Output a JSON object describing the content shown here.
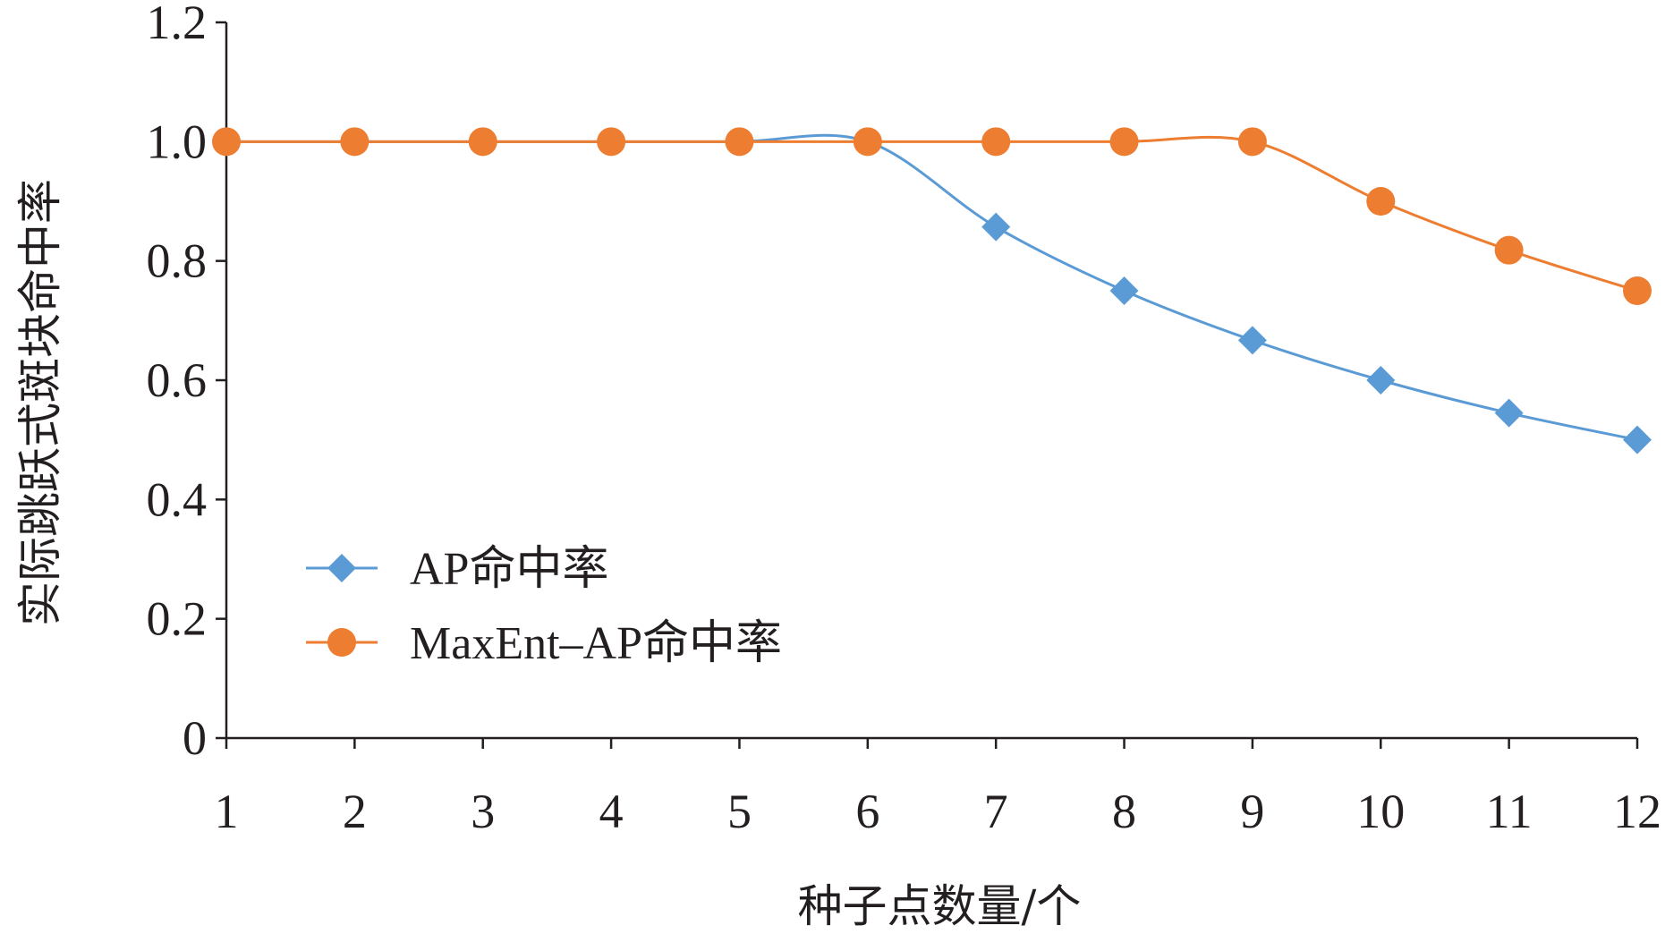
{
  "chart_data": {
    "type": "line",
    "xlabel": "种子点数量/个",
    "ylabel": "实际跳跃式斑块命中率",
    "x": [
      1,
      2,
      3,
      4,
      5,
      6,
      7,
      8,
      9,
      10,
      11,
      12
    ],
    "xticks": [
      "1",
      "2",
      "3",
      "4",
      "5",
      "6",
      "7",
      "8",
      "9",
      "10",
      "11",
      "12"
    ],
    "ylim": [
      0,
      1.2
    ],
    "yticks": [
      "0",
      "0.2",
      "0.4",
      "0.6",
      "0.8",
      "1.0",
      "1.2"
    ],
    "grid": false,
    "legend_position": "center-left",
    "series": [
      {
        "name": "AP命中率",
        "color": "#5b9bd5",
        "marker": "diamond",
        "values": [
          1.0,
          1.0,
          1.0,
          1.0,
          1.0,
          1.0,
          0.857,
          0.75,
          0.667,
          0.6,
          0.545,
          0.5
        ]
      },
      {
        "name": "MaxEnt–AP命中率",
        "color": "#ed7d31",
        "marker": "circle",
        "values": [
          1.0,
          1.0,
          1.0,
          1.0,
          1.0,
          1.0,
          1.0,
          1.0,
          1.0,
          0.9,
          0.818,
          0.75
        ]
      }
    ]
  }
}
